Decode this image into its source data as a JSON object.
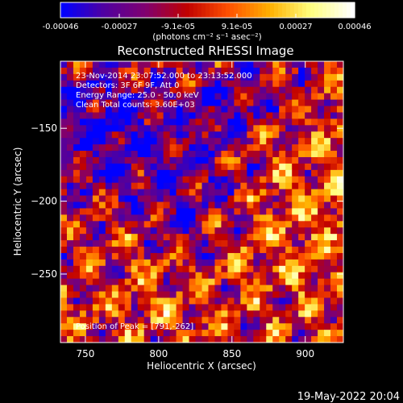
{
  "chart_data": {
    "type": "heatmap",
    "title": "Reconstructed RHESSI Image",
    "xlabel": "Heliocentric X (arcsec)",
    "ylabel": "Heliocentric Y (arcsec)",
    "xlim": [
      733,
      926
    ],
    "ylim": [
      -297,
      -104
    ],
    "x_ticks": [
      750,
      800,
      850,
      900
    ],
    "y_ticks": [
      -250,
      -200,
      -150
    ],
    "colorbar": {
      "label": "(photons cm⁻² s⁻¹ asec⁻²)",
      "range": [
        -0.00046,
        0.00046
      ],
      "ticks": [
        "-0.00046",
        "-0.00027",
        "-9.1e-05",
        "9.1e-05",
        "0.00027",
        "0.00046"
      ],
      "colormap": [
        "#0000ff",
        "#5000a0",
        "#800070",
        "#c00000",
        "#ff5000",
        "#ffb000",
        "#ffff80",
        "#ffffff"
      ]
    },
    "annotations": [
      "23-Nov-2014 23:07:52.000 to 23:13:52.000",
      "Detectors: 3F 6F 9F, Att 0",
      "Energy Range: 25.0 - 50.0 keV",
      "Clean    Total counts: 3.60E+03"
    ],
    "peak_label": "Position of Peak = [791,-262]",
    "peak": [
      791,
      -262
    ],
    "grid": false
  },
  "footer": {
    "timestamp": "19-May-2022 20:04"
  }
}
